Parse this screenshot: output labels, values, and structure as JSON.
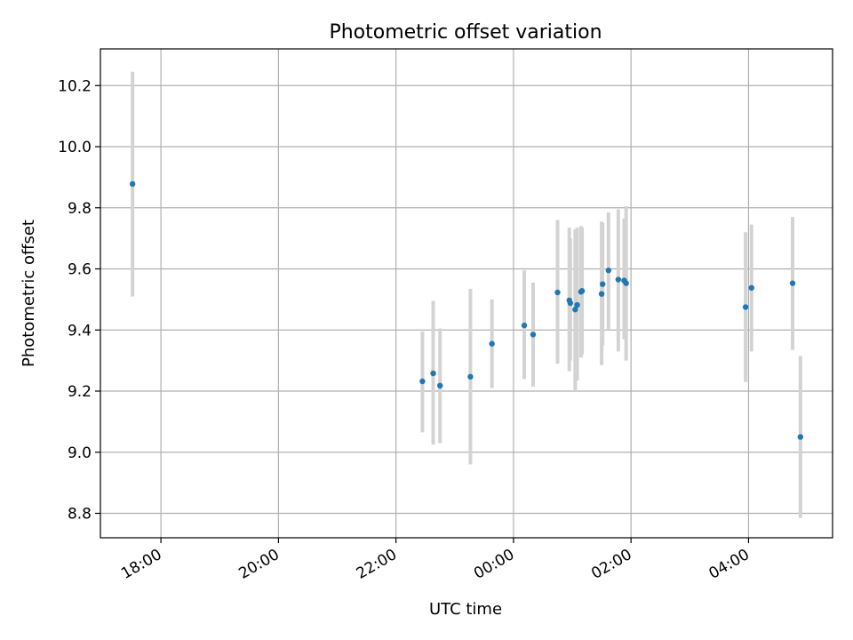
{
  "chart_data": {
    "type": "scatter",
    "title": "Photometric offset variation",
    "xlabel": "UTC time",
    "ylabel": "Photometric offset",
    "x_tick_labels": [
      "18:00",
      "20:00",
      "22:00",
      "00:00",
      "02:00",
      "04:00"
    ],
    "x_tick_hours": [
      18,
      20,
      22,
      24,
      26,
      28
    ],
    "y_tick_labels": [
      "8.8",
      "9.0",
      "9.2",
      "9.4",
      "9.6",
      "9.8",
      "10.0",
      "10.2"
    ],
    "y_ticks": [
      8.8,
      9.0,
      9.2,
      9.4,
      9.6,
      9.8,
      10.0,
      10.2
    ],
    "xlim_hours": [
      16.97,
      29.43
    ],
    "ylim": [
      8.72,
      10.32
    ],
    "grid": true,
    "colors": {
      "marker": "#1f77b4",
      "errorbar": "#d3d3d3",
      "grid": "#b0b0b0",
      "axes": "#000000"
    },
    "series": [
      {
        "points": [
          {
            "t": "17:31",
            "y": 9.878,
            "lo": 9.51,
            "hi": 10.245
          },
          {
            "t": "22:27",
            "y": 9.232,
            "lo": 9.065,
            "hi": 9.395
          },
          {
            "t": "22:38",
            "y": 9.258,
            "lo": 9.025,
            "hi": 9.495
          },
          {
            "t": "22:45",
            "y": 9.218,
            "lo": 9.03,
            "hi": 9.405
          },
          {
            "t": "23:16",
            "y": 9.247,
            "lo": 8.96,
            "hi": 9.535
          },
          {
            "t": "23:38",
            "y": 9.355,
            "lo": 9.21,
            "hi": 9.5
          },
          {
            "t": "00:11",
            "y": 9.415,
            "lo": 9.24,
            "hi": 9.595
          },
          {
            "t": "00:20",
            "y": 9.385,
            "lo": 9.215,
            "hi": 9.555
          },
          {
            "t": "00:45",
            "y": 9.523,
            "lo": 9.29,
            "hi": 9.76
          },
          {
            "t": "00:57",
            "y": 9.497,
            "lo": 9.265,
            "hi": 9.735
          },
          {
            "t": "00:58",
            "y": 9.488,
            "lo": 9.3,
            "hi": 9.7
          },
          {
            "t": "01:03",
            "y": 9.467,
            "lo": 9.2,
            "hi": 9.73
          },
          {
            "t": "01:05",
            "y": 9.482,
            "lo": 9.235,
            "hi": 9.735
          },
          {
            "t": "01:09",
            "y": 9.525,
            "lo": 9.31,
            "hi": 9.74
          },
          {
            "t": "01:10",
            "y": 9.528,
            "lo": 9.32,
            "hi": 9.735
          },
          {
            "t": "01:30",
            "y": 9.518,
            "lo": 9.285,
            "hi": 9.755
          },
          {
            "t": "01:31",
            "y": 9.55,
            "lo": 9.35,
            "hi": 9.75
          },
          {
            "t": "01:37",
            "y": 9.595,
            "lo": 9.4,
            "hi": 9.785
          },
          {
            "t": "01:47",
            "y": 9.565,
            "lo": 9.33,
            "hi": 9.795
          },
          {
            "t": "01:53",
            "y": 9.562,
            "lo": 9.37,
            "hi": 9.765
          },
          {
            "t": "01:55",
            "y": 9.553,
            "lo": 9.3,
            "hi": 9.805
          },
          {
            "t": "03:57",
            "y": 9.475,
            "lo": 9.23,
            "hi": 9.72
          },
          {
            "t": "04:03",
            "y": 9.538,
            "lo": 9.33,
            "hi": 9.745
          },
          {
            "t": "04:45",
            "y": 9.553,
            "lo": 9.335,
            "hi": 9.77
          },
          {
            "t": "04:53",
            "y": 9.05,
            "lo": 8.785,
            "hi": 9.315
          }
        ]
      }
    ]
  }
}
